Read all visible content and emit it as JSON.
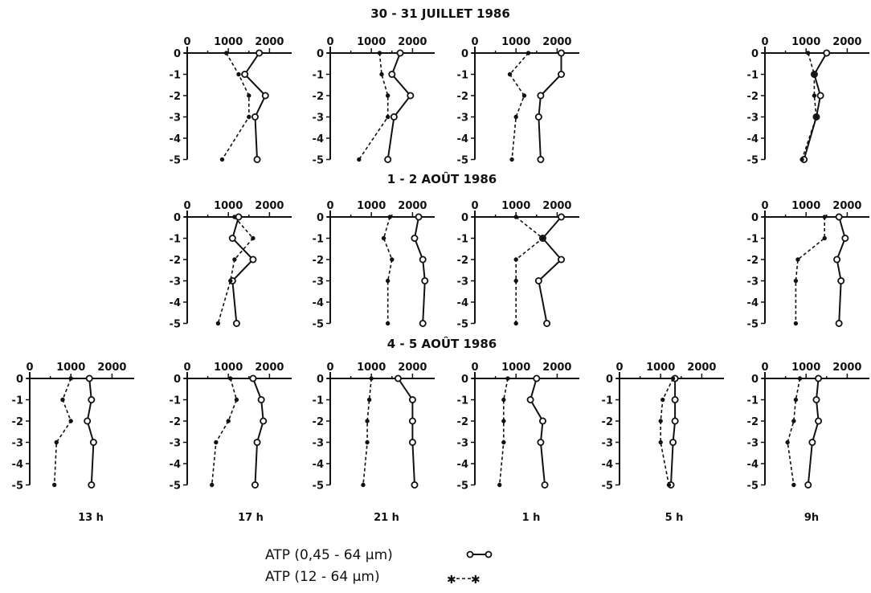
{
  "section_titles": [
    "30 - 31  JUILLET  1986",
    "1 - 2  AOÛT  1986",
    "4 - 5  AOÛT  1986"
  ],
  "time_labels": [
    "13 h",
    "17 h",
    "21 h",
    "1 h",
    "5 h",
    "9h"
  ],
  "legend": [
    {
      "label": "ATP  (0,45 - 64 µm)",
      "marker": "open-circle-solid-line"
    },
    {
      "label": "ATP  (12 - 64 µm)",
      "marker": "star-dashed-line"
    }
  ],
  "chart_data": [
    {
      "type": "line",
      "date": "30 - 31 JUILLET 1986",
      "time": "17 h",
      "xticks": [
        "0",
        "1000",
        "2000"
      ],
      "yticks": [
        "0",
        "-1",
        "-2",
        "-3",
        "-4",
        "-5"
      ],
      "xlim": [
        0,
        2500
      ],
      "ylim": [
        -5,
        0
      ],
      "depth": [
        0,
        -1,
        -2,
        -3,
        -4,
        -5
      ],
      "series": [
        {
          "name": "ATP (0,45 - 64 µm)",
          "style": "solid-open-circle",
          "depths": [
            0,
            -1,
            -2,
            -3,
            -5
          ],
          "values": [
            1750,
            1400,
            1900,
            1650,
            1700
          ]
        },
        {
          "name": "ATP (12 - 64 µm)",
          "style": "dashed-star",
          "depths": [
            0,
            -1,
            -2,
            -3,
            -5
          ],
          "values": [
            950,
            1250,
            1500,
            1500,
            850
          ]
        }
      ]
    },
    {
      "type": "line",
      "date": "30 - 31 JUILLET 1986",
      "time": "21 h",
      "xticks": [
        "0",
        "1000",
        "2000"
      ],
      "yticks": [
        "0",
        "-1",
        "-2",
        "-3",
        "-4",
        "-5"
      ],
      "xlim": [
        0,
        2500
      ],
      "ylim": [
        -5,
        0
      ],
      "depth": [
        0,
        -1,
        -2,
        -3,
        -4,
        -5
      ],
      "series": [
        {
          "name": "ATP (0,45 - 64 µm)",
          "style": "solid-open-circle",
          "depths": [
            0,
            -1,
            -2,
            -3,
            -5
          ],
          "values": [
            1700,
            1500,
            1950,
            1550,
            1400
          ]
        },
        {
          "name": "ATP (12 - 64 µm)",
          "style": "dashed-star",
          "depths": [
            0,
            -1,
            -2,
            -3,
            -5
          ],
          "values": [
            1200,
            1250,
            1400,
            1400,
            700
          ]
        }
      ]
    },
    {
      "type": "line",
      "date": "30 - 31 JUILLET 1986",
      "time": "1 h",
      "xticks": [
        "0",
        "1000",
        "2000"
      ],
      "yticks": [
        "0",
        "-1",
        "-2",
        "-3",
        "-4",
        "-5"
      ],
      "xlim": [
        0,
        2500
      ],
      "ylim": [
        -5,
        0
      ],
      "depth": [
        0,
        -1,
        -2,
        -3,
        -5
      ],
      "series": [
        {
          "name": "ATP (0,45 - 64 µm)",
          "style": "solid-open-circle",
          "depths": [
            0,
            -1,
            -2,
            -3,
            -5
          ],
          "values": [
            2100,
            2100,
            1600,
            1550,
            1600
          ]
        },
        {
          "name": "ATP (12 - 64 µm)",
          "style": "dashed-star",
          "depths": [
            0,
            -1,
            -2,
            -3,
            -5
          ],
          "values": [
            1300,
            850,
            1200,
            1000,
            900
          ]
        }
      ]
    },
    {
      "type": "line",
      "date": "30 - 31 JUILLET 1986",
      "time": "9h",
      "xticks": [
        "0",
        "1000",
        "2000"
      ],
      "yticks": [
        "0",
        "-1",
        "-2",
        "-3",
        "-4",
        "-5"
      ],
      "xlim": [
        0,
        2500
      ],
      "ylim": [
        -5,
        0
      ],
      "depth": [
        0,
        -1,
        -2,
        -3,
        -4,
        -5
      ],
      "series": [
        {
          "name": "ATP (0,45 - 64 µm)",
          "style": "solid-open-circle",
          "depths": [
            0,
            -1,
            -2,
            -3,
            -5
          ],
          "values": [
            1500,
            1200,
            1350,
            1250,
            950
          ]
        },
        {
          "name": "ATP (12 - 64 µm)",
          "style": "dashed-star",
          "depths": [
            0,
            -1,
            -2,
            -3,
            -5
          ],
          "values": [
            1050,
            1200,
            1200,
            1250,
            900
          ]
        }
      ]
    },
    {
      "type": "line",
      "date": "1 - 2 AOÛT 1986",
      "time": "17 h",
      "xticks": [
        "0",
        "1000",
        "2000"
      ],
      "yticks": [
        "0",
        "-1",
        "-2",
        "-3",
        "-4",
        "-5"
      ],
      "xlim": [
        0,
        2500
      ],
      "ylim": [
        -5,
        0
      ],
      "depth": [
        0,
        -1,
        -2,
        -3,
        -4,
        -5
      ],
      "series": [
        {
          "name": "ATP (0,45 - 64 µm)",
          "style": "solid-open-circle",
          "depths": [
            0,
            -1,
            -2,
            -3,
            -5
          ],
          "values": [
            1250,
            1100,
            1600,
            1100,
            1200
          ]
        },
        {
          "name": "ATP (12 - 64 µm)",
          "style": "dashed-star",
          "depths": [
            0,
            -1,
            -2,
            -3,
            -5
          ],
          "values": [
            1150,
            1600,
            1150,
            1050,
            750
          ]
        }
      ]
    },
    {
      "type": "line",
      "date": "1 - 2 AOÛT 1986",
      "time": "21 h",
      "xticks": [
        "0",
        "1000",
        "2000"
      ],
      "yticks": [
        "0",
        "-1",
        "-2",
        "-3",
        "-4",
        "-5"
      ],
      "xlim": [
        0,
        2500
      ],
      "ylim": [
        -5,
        0
      ],
      "depth": [
        0,
        -1,
        -2,
        -3,
        -4,
        -5
      ],
      "series": [
        {
          "name": "ATP (0,45 - 64 µm)",
          "style": "solid-open-circle",
          "depths": [
            0,
            -1,
            -2,
            -3,
            -5
          ],
          "values": [
            2150,
            2050,
            2250,
            2300,
            2250
          ]
        },
        {
          "name": "ATP (12 - 64 µm)",
          "style": "dashed-star",
          "depths": [
            0,
            -1,
            -2,
            -3,
            -5
          ],
          "values": [
            1450,
            1300,
            1500,
            1400,
            1400
          ]
        }
      ]
    },
    {
      "type": "line",
      "date": "1 - 2 AOÛT 1986",
      "time": "1 h",
      "xticks": [
        "0",
        "1000",
        "2000"
      ],
      "yticks": [
        "0",
        "-1",
        "-2",
        "-3",
        "-4",
        "-5"
      ],
      "xlim": [
        0,
        2500
      ],
      "ylim": [
        -5,
        0
      ],
      "depth": [
        0,
        -1,
        -2,
        -3,
        -4,
        -5
      ],
      "series": [
        {
          "name": "ATP (0,45 - 64 µm)",
          "style": "solid-open-circle",
          "depths": [
            0,
            -1,
            -2,
            -3,
            -5
          ],
          "values": [
            2100,
            1650,
            2100,
            1550,
            1750
          ]
        },
        {
          "name": "ATP (12 - 64 µm)",
          "style": "dashed-star",
          "depths": [
            0,
            -1,
            -2,
            -3,
            -5
          ],
          "values": [
            1000,
            1650,
            1000,
            1000,
            1000
          ]
        }
      ]
    },
    {
      "type": "line",
      "date": "1 - 2 AOÛT 1986",
      "time": "9h",
      "xticks": [
        "0",
        "1000",
        "2000"
      ],
      "yticks": [
        "0",
        "-1",
        "-2",
        "-3",
        "-4",
        "-5"
      ],
      "xlim": [
        0,
        2500
      ],
      "ylim": [
        -5,
        0
      ],
      "depth": [
        0,
        -1,
        -2,
        -3,
        -4,
        -5
      ],
      "series": [
        {
          "name": "ATP (0,45 - 64 µm)",
          "style": "solid-open-circle",
          "depths": [
            0,
            -1,
            -2,
            -3,
            -5
          ],
          "values": [
            1800,
            1950,
            1750,
            1850,
            1800
          ]
        },
        {
          "name": "ATP (12 - 64 µm)",
          "style": "dashed-star",
          "depths": [
            0,
            -1,
            -2,
            -3,
            -5
          ],
          "values": [
            1450,
            1450,
            800,
            750,
            750
          ]
        }
      ]
    },
    {
      "type": "line",
      "date": "4 - 5 AOÛT 1986",
      "time": "13 h",
      "xticks": [
        "0",
        "1000",
        "2000"
      ],
      "yticks": [
        "0",
        "-1",
        "-2",
        "-3",
        "-4",
        "-5"
      ],
      "xlim": [
        0,
        2500
      ],
      "ylim": [
        -5,
        0
      ],
      "depth": [
        0,
        -1,
        -2,
        -3,
        -4,
        -5
      ],
      "series": [
        {
          "name": "ATP (0,45 - 64 µm)",
          "style": "solid-open-circle",
          "depths": [
            0,
            -1,
            -2,
            -3,
            -5
          ],
          "values": [
            1450,
            1500,
            1400,
            1550,
            1500
          ]
        },
        {
          "name": "ATP (12 - 64 µm)",
          "style": "dashed-star",
          "depths": [
            0,
            -1,
            -2,
            -3,
            -5
          ],
          "values": [
            1000,
            800,
            1000,
            650,
            600
          ]
        }
      ]
    },
    {
      "type": "line",
      "date": "4 - 5 AOÛT 1986",
      "time": "17 h",
      "xticks": [
        "0",
        "1000",
        "2000"
      ],
      "yticks": [
        "0",
        "-1",
        "-2",
        "-3",
        "-4",
        "-5"
      ],
      "xlim": [
        0,
        2500
      ],
      "ylim": [
        -5,
        0
      ],
      "depth": [
        0,
        -1,
        -2,
        -3,
        -4,
        -5
      ],
      "series": [
        {
          "name": "ATP (0,45 - 64 µm)",
          "style": "solid-open-circle",
          "depths": [
            0,
            -1,
            -2,
            -3,
            -5
          ],
          "values": [
            1600,
            1800,
            1850,
            1700,
            1650
          ]
        },
        {
          "name": "ATP (12 - 64 µm)",
          "style": "dashed-star",
          "depths": [
            0,
            -1,
            -2,
            -3,
            -5
          ],
          "values": [
            1050,
            1200,
            1000,
            700,
            600
          ]
        }
      ]
    },
    {
      "type": "line",
      "date": "4 - 5 AOÛT 1986",
      "time": "21 h",
      "xticks": [
        "0",
        "1000",
        "2000"
      ],
      "yticks": [
        "0",
        "-1",
        "-2",
        "-3",
        "-4",
        "-5"
      ],
      "xlim": [
        0,
        2500
      ],
      "ylim": [
        -5,
        0
      ],
      "depth": [
        0,
        -1,
        -2,
        -3,
        -4,
        -5
      ],
      "series": [
        {
          "name": "ATP (0,45 - 64 µm)",
          "style": "solid-open-circle",
          "depths": [
            0,
            -1,
            -2,
            -3,
            -5
          ],
          "values": [
            1650,
            2000,
            2000,
            2000,
            2050
          ]
        },
        {
          "name": "ATP (12 - 64 µm)",
          "style": "dashed-star",
          "depths": [
            0,
            -1,
            -2,
            -3,
            -5
          ],
          "values": [
            1000,
            950,
            900,
            900,
            800
          ]
        }
      ]
    },
    {
      "type": "line",
      "date": "4 - 5 AOÛT 1986",
      "time": "1 h",
      "xticks": [
        "0",
        "1000",
        "2000"
      ],
      "yticks": [
        "0",
        "-1",
        "-2",
        "-3",
        "-4",
        "-5"
      ],
      "xlim": [
        0,
        2500
      ],
      "ylim": [
        -5,
        0
      ],
      "depth": [
        0,
        -1,
        -2,
        -3,
        -4,
        -5
      ],
      "series": [
        {
          "name": "ATP (0,45 - 64 µm)",
          "style": "solid-open-circle",
          "depths": [
            0,
            -1,
            -2,
            -3,
            -5
          ],
          "values": [
            1500,
            1350,
            1650,
            1600,
            1700
          ]
        },
        {
          "name": "ATP (12 - 64 µm)",
          "style": "dashed-star",
          "depths": [
            0,
            -1,
            -2,
            -3,
            -5
          ],
          "values": [
            800,
            700,
            700,
            700,
            600
          ]
        }
      ]
    },
    {
      "type": "line",
      "date": "4 - 5 AOÛT 1986",
      "time": "5 h",
      "xticks": [
        "0",
        "1000",
        "2000"
      ],
      "yticks": [
        "0",
        "-1",
        "-2",
        "-3",
        "-4",
        "-5"
      ],
      "xlim": [
        0,
        2500
      ],
      "ylim": [
        -5,
        0
      ],
      "depth": [
        0,
        -1,
        -2,
        -3,
        -4,
        -5
      ],
      "series": [
        {
          "name": "ATP (0,45 - 64 µm)",
          "style": "solid-open-circle",
          "depths": [
            0,
            -1,
            -2,
            -3,
            -5
          ],
          "values": [
            1350,
            1350,
            1350,
            1300,
            1250
          ]
        },
        {
          "name": "ATP (12 - 64 µm)",
          "style": "dashed-star",
          "depths": [
            0,
            -1,
            -2,
            -3,
            -5
          ],
          "values": [
            1300,
            1050,
            1000,
            1000,
            1200
          ]
        }
      ]
    },
    {
      "type": "line",
      "date": "4 - 5 AOÛT 1986",
      "time": "9h",
      "xticks": [
        "0",
        "1000",
        "2000"
      ],
      "yticks": [
        "0",
        "-1",
        "-2",
        "-3",
        "-4",
        "-5"
      ],
      "xlim": [
        0,
        2500
      ],
      "ylim": [
        -5,
        0
      ],
      "depth": [
        0,
        -1,
        -2,
        -3,
        -4,
        -5
      ],
      "series": [
        {
          "name": "ATP (0,45 - 64 µm)",
          "style": "solid-open-circle",
          "depths": [
            0,
            -1,
            -2,
            -3,
            -5
          ],
          "values": [
            1300,
            1250,
            1300,
            1150,
            1050
          ]
        },
        {
          "name": "ATP (12 - 64 µm)",
          "style": "dashed-star",
          "depths": [
            0,
            -1,
            -2,
            -3,
            -5
          ],
          "values": [
            850,
            750,
            700,
            550,
            700
          ]
        }
      ]
    }
  ]
}
